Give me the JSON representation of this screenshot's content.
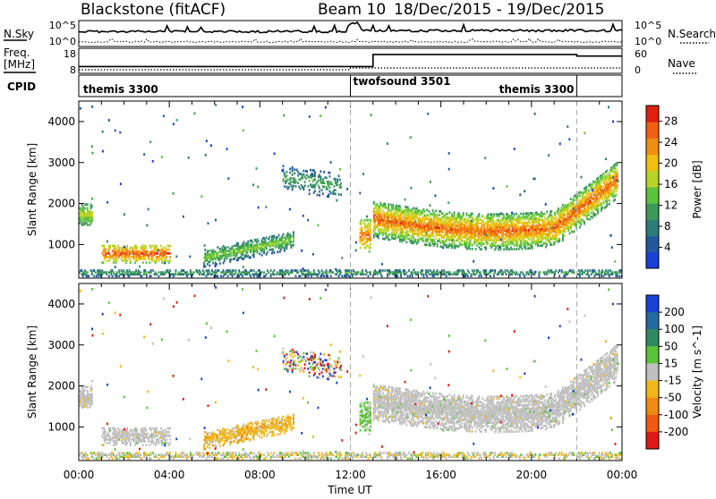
{
  "header": {
    "station": "Blackstone (fitACF)",
    "beam": "Beam 10",
    "dates": "18/Dec/2015 - 19/Dec/2015"
  },
  "labels": {
    "nsky": "N.Sky",
    "nsearch": "N.Search",
    "freq": "Freq.",
    "mhz": "[MHz]",
    "nave": "Nave",
    "cpid": "CPID",
    "time_axis": "Time UT",
    "slant_range": "Slant Range [km]"
  },
  "noise_panel": {
    "left_ticks": [
      "10^5",
      "10^0"
    ],
    "right_ticks": [
      "10^5",
      "10^0"
    ]
  },
  "freq_panel": {
    "left_ticks": [
      "18",
      "8"
    ],
    "right_ticks": [
      "60",
      "0"
    ]
  },
  "cpid_panel": {
    "modes": [
      {
        "name": "themis 3300",
        "start_hour": 0,
        "end_hour": 12
      },
      {
        "name": "twofsound 3501",
        "start_hour": 12,
        "end_hour": 22
      },
      {
        "name": "themis 3300",
        "start_hour": 22,
        "end_hour": 24
      }
    ]
  },
  "chart_data": [
    {
      "type": "heatmap",
      "title": "Power",
      "xlabel": "Time UT",
      "ylabel": "Slant Range [km]",
      "x_ticks": [
        "00:00",
        "04:00",
        "08:00",
        "12:00",
        "16:00",
        "20:00",
        "00:00"
      ],
      "xlim_hours": [
        0,
        24
      ],
      "y_ticks": [
        1000,
        2000,
        3000,
        4000
      ],
      "ylim": [
        180,
        4500
      ],
      "colorbar_label": "Power [dB]",
      "colorbar_ticks": [
        4,
        8,
        12,
        16,
        20,
        24,
        28
      ],
      "colorbar_range": [
        0,
        31
      ],
      "colorbar_colors": [
        "#1a3fd6",
        "#24589e",
        "#2e7c78",
        "#3e9a5a",
        "#5cc23a",
        "#b8d425",
        "#f0c010",
        "#f09010",
        "#f06010",
        "#e02010"
      ],
      "vertical_markers_hours": [
        12,
        22
      ]
    },
    {
      "type": "heatmap",
      "title": "Velocity",
      "xlabel": "Time UT",
      "ylabel": "Slant Range [km]",
      "x_ticks": [
        "00:00",
        "04:00",
        "08:00",
        "12:00",
        "16:00",
        "20:00",
        "00:00"
      ],
      "xlim_hours": [
        0,
        24
      ],
      "y_ticks": [
        1000,
        2000,
        3000,
        4000
      ],
      "ylim": [
        180,
        4500
      ],
      "colorbar_label": "Velocity [m s^-1]",
      "colorbar_ticks": [
        200,
        100,
        50,
        15,
        -15,
        -50,
        -100,
        -200
      ],
      "colorbar_colors": [
        "#1a3fd6",
        "#246a9e",
        "#2f8a5f",
        "#5cc23a",
        "#c0c0c0",
        "#f0b818",
        "#f08a10",
        "#f05a10",
        "#e01818"
      ],
      "vertical_markers_hours": [
        12,
        22
      ]
    }
  ]
}
